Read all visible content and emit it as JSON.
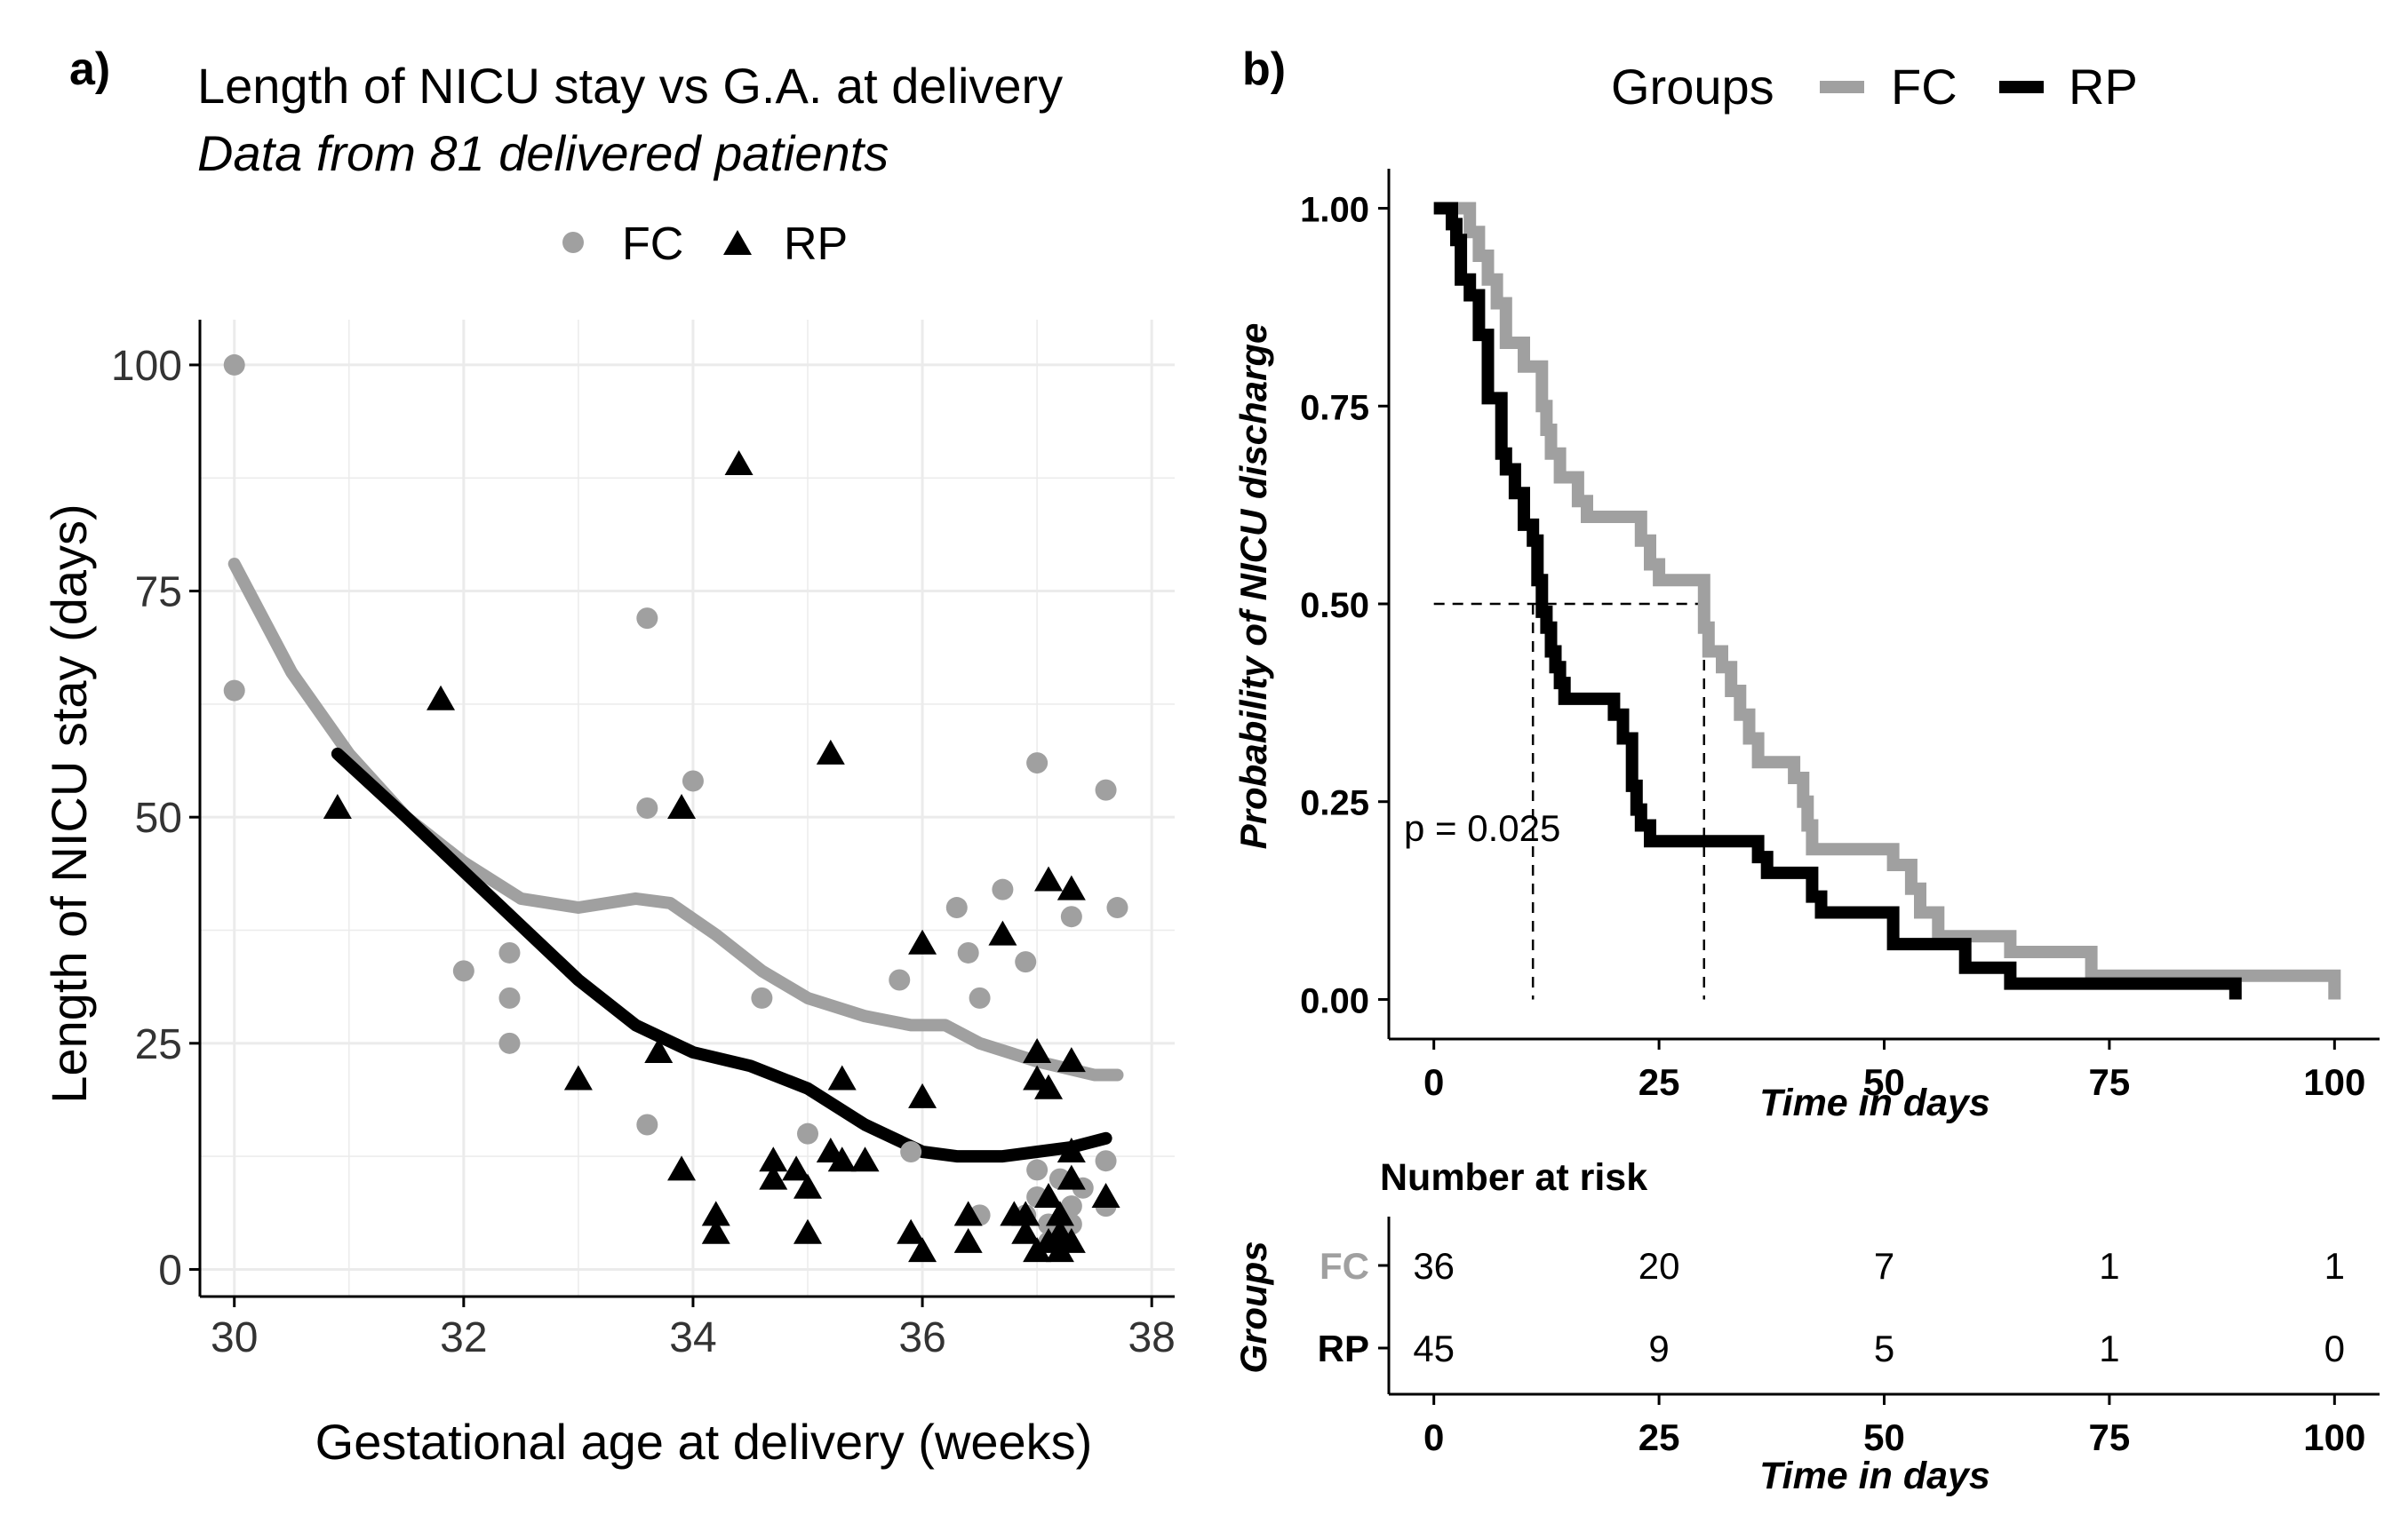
{
  "colors": {
    "fc": "#a0a0a0",
    "rp": "#000000",
    "grid": "#ebebeb",
    "axis": "#000000"
  },
  "panel_a": {
    "label": "a)",
    "title": "Length of NICU stay vs G.A. at delivery",
    "subtitle": "Data from 81 delivered patients"
  },
  "panel_b": {
    "label": "b)",
    "legend_title": "Groups",
    "fc_label": "FC",
    "rp_label": "RP",
    "pvalue": "p = 0.025",
    "risk_title": "Number at risk",
    "risk_ylabel": "Groups",
    "risk_xlabel": "Time in days"
  },
  "chart_data": [
    {
      "type": "scatter",
      "title": "Length of NICU stay vs G.A. at delivery",
      "subtitle": "Data from 81 delivered patients",
      "xlabel": "Gestational age at delivery (weeks)",
      "ylabel": "Length of NICU stay (days)",
      "xlim": [
        29.7,
        38.2
      ],
      "ylim": [
        -3,
        105
      ],
      "xticks": [
        30,
        32,
        34,
        36,
        38
      ],
      "yticks": [
        0,
        25,
        50,
        75,
        100
      ],
      "grid": true,
      "legend": {
        "position": "top",
        "entries": [
          "FC",
          "RP"
        ]
      },
      "series": [
        {
          "name": "FC",
          "marker": "circle",
          "points": [
            [
              30,
              100
            ],
            [
              30,
              64
            ],
            [
              32,
              33
            ],
            [
              32.4,
              35
            ],
            [
              32.4,
              30
            ],
            [
              32.4,
              25
            ],
            [
              33.6,
              72
            ],
            [
              33.6,
              51
            ],
            [
              33.6,
              16
            ],
            [
              34,
              54
            ],
            [
              34.6,
              30
            ],
            [
              35,
              15
            ],
            [
              35.8,
              32
            ],
            [
              35.9,
              13
            ],
            [
              36.3,
              40
            ],
            [
              36.4,
              35
            ],
            [
              36.5,
              30
            ],
            [
              36.5,
              6
            ],
            [
              36.7,
              42
            ],
            [
              36.9,
              34
            ],
            [
              37,
              56
            ],
            [
              37,
              11
            ],
            [
              37,
              8
            ],
            [
              37.1,
              5
            ],
            [
              37.2,
              10
            ],
            [
              37.3,
              39
            ],
            [
              37.3,
              7
            ],
            [
              37.3,
              5
            ],
            [
              37.6,
              53
            ],
            [
              37.6,
              12
            ],
            [
              37.6,
              7
            ],
            [
              37.7,
              40
            ],
            [
              37.1,
              3
            ],
            [
              37.2,
              4
            ],
            [
              36.9,
              6
            ],
            [
              37.4,
              9
            ]
          ]
        },
        {
          "name": "RP",
          "marker": "triangle",
          "points": [
            [
              30.9,
              51
            ],
            [
              31.8,
              63
            ],
            [
              33,
              21
            ],
            [
              33.7,
              24
            ],
            [
              33.9,
              51
            ],
            [
              33.9,
              11
            ],
            [
              34.2,
              6
            ],
            [
              34.2,
              4
            ],
            [
              34.4,
              89
            ],
            [
              34.7,
              12
            ],
            [
              34.7,
              10
            ],
            [
              34.9,
              11
            ],
            [
              35,
              9
            ],
            [
              35,
              4
            ],
            [
              35.2,
              57
            ],
            [
              35.2,
              13
            ],
            [
              35.3,
              21
            ],
            [
              35.3,
              12
            ],
            [
              35.5,
              12
            ],
            [
              35.9,
              4
            ],
            [
              36,
              36
            ],
            [
              36,
              19
            ],
            [
              36,
              2
            ],
            [
              36.4,
              3
            ],
            [
              36.4,
              6
            ],
            [
              36.7,
              37
            ],
            [
              36.8,
              6
            ],
            [
              36.9,
              6
            ],
            [
              36.9,
              4
            ],
            [
              37,
              24
            ],
            [
              37,
              21
            ],
            [
              37.1,
              43
            ],
            [
              37.1,
              20
            ],
            [
              37.1,
              8
            ],
            [
              37.2,
              6
            ],
            [
              37.2,
              4
            ],
            [
              37.2,
              2
            ],
            [
              37.3,
              42
            ],
            [
              37.3,
              23
            ],
            [
              37.3,
              13
            ],
            [
              37.3,
              10
            ],
            [
              37.3,
              3
            ],
            [
              37.6,
              8
            ],
            [
              37,
              2
            ],
            [
              37.1,
              3
            ]
          ]
        }
      ],
      "smooth": [
        {
          "name": "FC",
          "points": [
            [
              30,
              78
            ],
            [
              30.5,
              66
            ],
            [
              31,
              57
            ],
            [
              31.5,
              50
            ],
            [
              32,
              45
            ],
            [
              32.5,
              41
            ],
            [
              33,
              40
            ],
            [
              33.5,
              41
            ],
            [
              33.8,
              40.5
            ],
            [
              34.2,
              37
            ],
            [
              34.6,
              33
            ],
            [
              35,
              30
            ],
            [
              35.5,
              28
            ],
            [
              35.9,
              27
            ],
            [
              36.2,
              27
            ],
            [
              36.5,
              25
            ],
            [
              37,
              23
            ],
            [
              37.5,
              21.5
            ],
            [
              37.7,
              21.5
            ]
          ]
        },
        {
          "name": "RP",
          "points": [
            [
              30.9,
              57
            ],
            [
              31.5,
              50
            ],
            [
              32,
              44
            ],
            [
              32.5,
              38
            ],
            [
              33,
              32
            ],
            [
              33.5,
              27
            ],
            [
              34,
              24
            ],
            [
              34.5,
              22.5
            ],
            [
              35,
              20
            ],
            [
              35.5,
              16
            ],
            [
              36,
              13
            ],
            [
              36.3,
              12.5
            ],
            [
              36.7,
              12.5
            ],
            [
              37,
              13
            ],
            [
              37.3,
              13.5
            ],
            [
              37.6,
              14.5
            ]
          ]
        }
      ]
    },
    {
      "type": "line",
      "subtype": "kaplan-meier",
      "xlabel": "Time in days",
      "ylabel": "Probability of NICU discharge",
      "xlim": [
        -5,
        105
      ],
      "ylim": [
        -0.05,
        1.05
      ],
      "xticks": [
        0,
        25,
        50,
        75,
        100
      ],
      "yticks": [
        "0.00",
        "0.25",
        "0.50",
        "0.75",
        "1.00"
      ],
      "legend": {
        "title": "Groups",
        "position": "top",
        "entries": [
          "FC",
          "RP"
        ]
      },
      "annotations": {
        "pvalue": "p = 0.025",
        "medians": [
          11,
          30
        ],
        "median_level": 0.5
      },
      "series": [
        {
          "name": "FC",
          "steps": [
            [
              0,
              1.0
            ],
            [
              4,
              0.97
            ],
            [
              5,
              0.94
            ],
            [
              6,
              0.91
            ],
            [
              7,
              0.88
            ],
            [
              8,
              0.83
            ],
            [
              10,
              0.8
            ],
            [
              12,
              0.75
            ],
            [
              12.5,
              0.72
            ],
            [
              13,
              0.69
            ],
            [
              14,
              0.66
            ],
            [
              16,
              0.63
            ],
            [
              17,
              0.61
            ],
            [
              23,
              0.58
            ],
            [
              24,
              0.55
            ],
            [
              25,
              0.53
            ],
            [
              30,
              0.47
            ],
            [
              30.5,
              0.44
            ],
            [
              32,
              0.42
            ],
            [
              33,
              0.39
            ],
            [
              34,
              0.36
            ],
            [
              35,
              0.33
            ],
            [
              36,
              0.3
            ],
            [
              40,
              0.28
            ],
            [
              41,
              0.25
            ],
            [
              41.5,
              0.22
            ],
            [
              42,
              0.19
            ],
            [
              51,
              0.17
            ],
            [
              53,
              0.14
            ],
            [
              54,
              0.11
            ],
            [
              56,
              0.08
            ],
            [
              64,
              0.06
            ],
            [
              73,
              0.03
            ],
            [
              100,
              0.0
            ]
          ]
        },
        {
          "name": "RP",
          "steps": [
            [
              0,
              1.0
            ],
            [
              2,
              0.98
            ],
            [
              2.5,
              0.96
            ],
            [
              3,
              0.91
            ],
            [
              4,
              0.89
            ],
            [
              5,
              0.84
            ],
            [
              6,
              0.76
            ],
            [
              7.5,
              0.69
            ],
            [
              8,
              0.67
            ],
            [
              9,
              0.64
            ],
            [
              10,
              0.6
            ],
            [
              11,
              0.58
            ],
            [
              11.5,
              0.53
            ],
            [
              12,
              0.49
            ],
            [
              12.5,
              0.47
            ],
            [
              13,
              0.44
            ],
            [
              13.5,
              0.42
            ],
            [
              14,
              0.4
            ],
            [
              14.5,
              0.38
            ],
            [
              20,
              0.36
            ],
            [
              21,
              0.33
            ],
            [
              22,
              0.27
            ],
            [
              22.5,
              0.24
            ],
            [
              23,
              0.22
            ],
            [
              24,
              0.2
            ],
            [
              36,
              0.18
            ],
            [
              37,
              0.16
            ],
            [
              42,
              0.13
            ],
            [
              43,
              0.11
            ],
            [
              51,
              0.07
            ],
            [
              59,
              0.04
            ],
            [
              64,
              0.02
            ],
            [
              89,
              0.0
            ]
          ]
        }
      ],
      "risk_table": {
        "title": "Number at risk",
        "times": [
          0,
          25,
          50,
          75,
          100
        ],
        "rows": [
          {
            "group": "FC",
            "values": [
              36,
              20,
              7,
              1,
              1
            ]
          },
          {
            "group": "RP",
            "values": [
              45,
              9,
              5,
              1,
              0
            ]
          }
        ]
      }
    }
  ]
}
